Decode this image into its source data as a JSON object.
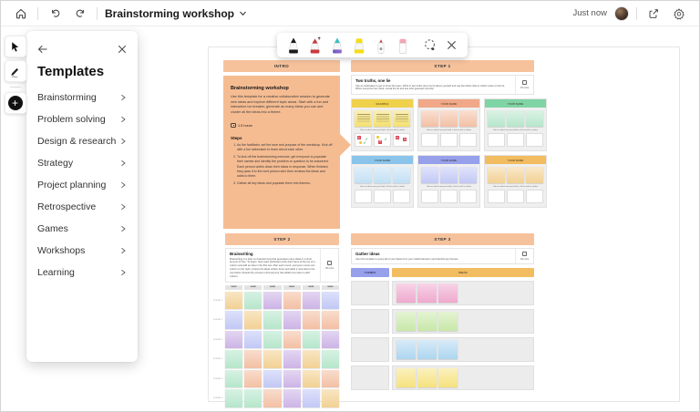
{
  "header": {
    "title": "Brainstorming workshop",
    "saved_status": "Just now",
    "icons": [
      "home-icon",
      "undo-icon",
      "redo-icon",
      "chevron-down-icon",
      "share-icon",
      "settings-icon"
    ]
  },
  "tool_rail": {
    "icons": [
      "select-cursor-icon",
      "pen-icon",
      "add-plus-icon"
    ]
  },
  "ink_toolbar": {
    "tools": [
      "black-pen",
      "red-arrow-pen",
      "galaxy-pen",
      "yellow-highlighter",
      "white-pen",
      "eraser",
      "lasso-select",
      "close"
    ]
  },
  "templates_panel": {
    "title": "Templates",
    "items": [
      {
        "label": "Brainstorming"
      },
      {
        "label": "Problem solving"
      },
      {
        "label": "Design & research"
      },
      {
        "label": "Strategy"
      },
      {
        "label": "Project planning"
      },
      {
        "label": "Retrospective"
      },
      {
        "label": "Games"
      },
      {
        "label": "Workshops"
      },
      {
        "label": "Learning"
      }
    ]
  },
  "board": {
    "intro": {
      "section_label": "INTRO",
      "title": "Brainstorming workshop",
      "body": "Use this template for a creative collaborative session to generate new ideas and explore different topic areas. Start with a fun and interactive ice breaker, generate as many ideas you can and cluster all the ideas into a theme.",
      "duration": "1.5 hours",
      "steps_title": "Steps",
      "steps": [
        "As the facilitator, set the tone and purpose of the workshop. Kick off with a fun icebreaker to learn about each other.",
        "To kick off the brainstorming exercise, get everyone to populate their names and identify the problem or question to be answered. Each person writes down their ideas in response. When finished, they pass it to the next person who then reviews the ideas and adds to them.",
        "Gather all key ideas and populate them into themes."
      ]
    },
    "step1": {
      "section_label": "STEP 1",
      "title": "Two truths, one lie",
      "body": "Use an icebreaker to get to know the team. Write in two truths and one lie about yourself and use the blank cells to collect votes on the lie. When everyone has voted, reveal the lie and see who guessed correctly.",
      "duration": "15 mins",
      "vote_caption": "Vote on which one you think is the lie with a sticker",
      "panels": [
        {
          "label": "EXAMPLE",
          "color": "yellow",
          "example": true,
          "stickers": [
            [
              "x",
              "check",
              "dot",
              "check"
            ],
            [
              "dot",
              "check",
              "x"
            ],
            [
              "x",
              "x"
            ]
          ]
        },
        {
          "label": "YOUR NAME",
          "color": "salmon"
        },
        {
          "label": "YOUR NAME",
          "color": "green"
        },
        {
          "label": "YOUR NAME",
          "color": "blue"
        },
        {
          "label": "YOUR NAME",
          "color": "periwinkle"
        },
        {
          "label": "YOUR NAME",
          "color": "amber"
        }
      ]
    },
    "step2": {
      "section_label": "STEP 2",
      "title": "Brainwriting",
      "body": "Brainwriting is a twist on brainstorming that generates many ideas in a short amount of time. To begin, have each participant write their name at the top of a column and add an idea in the first row. After each round, everyone moves one column to the right, reviews the ideas written down and adds a new idea to the row below. Repeat the process until everyone has added one idea to each column.",
      "duration": "45 mins",
      "name_chips": [
        "NAME",
        "NAME",
        "NAME",
        "NAME",
        "NAME",
        "NAME"
      ],
      "rows": [
        {
          "label": "ROUND 1",
          "cells": [
            "amber",
            "green",
            "purple",
            "salmon",
            "purple",
            "periwinkle"
          ]
        },
        {
          "label": "ROUND 2",
          "cells": [
            "periwinkle",
            "amber",
            "green",
            "purple",
            "salmon",
            "salmon"
          ]
        },
        {
          "label": "ROUND 3",
          "cells": [
            "purple",
            "periwinkle",
            "green",
            "salmon",
            "green",
            "purple"
          ]
        },
        {
          "label": "ROUND 4",
          "cells": [
            "green",
            "salmon",
            "amber",
            "purple",
            "amber",
            "green"
          ]
        },
        {
          "label": "ROUND 5",
          "cells": [
            "green",
            "salmon",
            "periwinkle",
            "purple",
            "amber",
            "salmon"
          ]
        },
        {
          "label": "ROUND 6",
          "cells": [
            "green",
            "green",
            "salmon",
            "purple",
            "periwinkle",
            "amber"
          ]
        }
      ]
    },
    "step3": {
      "section_label": "STEP 3",
      "title": "Gather ideas",
      "body": "Use this template to group all of your ideas from your initial brainstorm and identify key themes.",
      "duration": "30 mins",
      "themes_label": "THEMES",
      "ideas_label": "IDEAS",
      "theme_cell_count": 4,
      "idea_rows": [
        {
          "color": "pink",
          "count": 3
        },
        {
          "color": "lgreen",
          "count": 3
        },
        {
          "color": "lblue",
          "count": 3
        },
        {
          "color": "lyellow",
          "count": 3
        }
      ]
    }
  },
  "palette": {
    "peach_header": "#F6C29C",
    "intro_card": "#F5BC92",
    "colors": {
      "yellow": {
        "header": "#F0D14B",
        "note": "#F4E070"
      },
      "salmon": {
        "header": "#F0A888",
        "note": "#F3C0A4"
      },
      "green": {
        "header": "#7FD4A5",
        "note": "#B6E6CB"
      },
      "blue": {
        "header": "#8AC4EB",
        "note": "#C2E0F4"
      },
      "periwinkle": {
        "header": "#97A0EA",
        "note": "#C2C8F5"
      },
      "amber": {
        "header": "#F2BC60",
        "note": "#F2D194"
      },
      "purple": {
        "header": "#B292D6",
        "note": "#CDB4E6"
      },
      "pink": {
        "header": "#E283B8",
        "note": "#EFA9CE"
      },
      "lgreen": {
        "header": "#9ED274",
        "note": "#C8E8A8"
      },
      "lblue": {
        "header": "#7FBCE8",
        "note": "#AED6F0"
      },
      "lyellow": {
        "header": "#F0D44E",
        "note": "#F6E27E"
      }
    }
  }
}
